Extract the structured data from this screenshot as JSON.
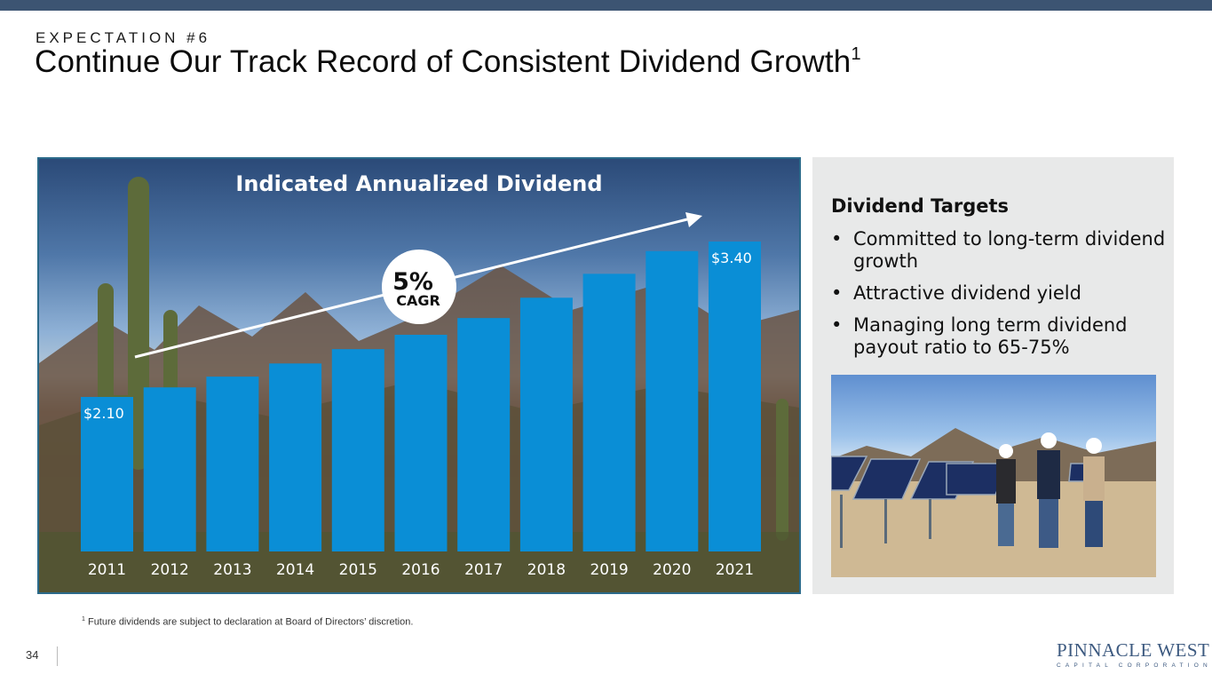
{
  "header": {
    "eyebrow": "EXPECTATION #6",
    "title": "Continue Our Track Record of Consistent Dividend Growth",
    "title_footnote_marker": "1"
  },
  "chart_data": {
    "type": "bar",
    "title": "Indicated Annualized Dividend",
    "categories": [
      "2011",
      "2012",
      "2013",
      "2014",
      "2015",
      "2016",
      "2017",
      "2018",
      "2019",
      "2020",
      "2021"
    ],
    "values": [
      2.1,
      2.18,
      2.27,
      2.38,
      2.5,
      2.62,
      2.76,
      2.93,
      3.13,
      3.32,
      3.4
    ],
    "data_labels": {
      "first": "$2.10",
      "last": "$3.40"
    },
    "ylim": [
      0,
      3.6
    ],
    "grid": false,
    "annotation": {
      "value": "5%",
      "label": "CAGR"
    },
    "colors": {
      "bar": "#0a8ed6",
      "text": "#ffffff"
    }
  },
  "side_panel": {
    "heading": "Dividend Targets",
    "bullets": [
      "Committed to long-term dividend growth",
      "Attractive dividend yield",
      "Managing long term dividend payout ratio to 65-75%"
    ],
    "bullet_glyph": "•"
  },
  "footnote": {
    "marker": "1",
    "text": "Future dividends are subject to declaration at Board of Directors’ discretion."
  },
  "page_number": "34",
  "logo": {
    "name": "PINNACLE WEST",
    "tagline": "CAPITAL CORPORATION"
  },
  "colors": {
    "top_bar": "#3c5472",
    "brand": "#3d5a80",
    "panel_bg": "#e8e9e9"
  }
}
